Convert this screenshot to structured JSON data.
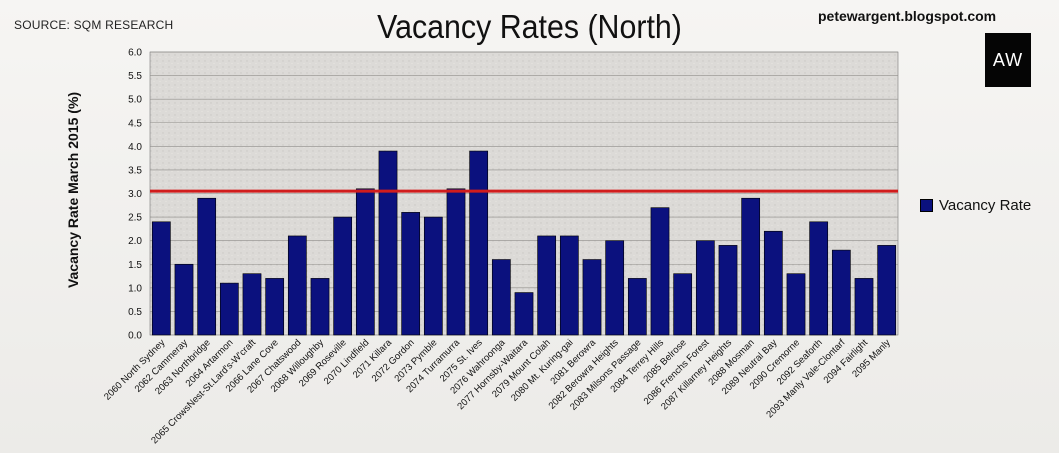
{
  "header": {
    "source": "SOURCE: SQM RESEARCH",
    "title": "Vacancy Rates (North)",
    "blog": "petewargent.blogspot.com",
    "logo": "AW"
  },
  "colors": {
    "bar": "#0b117e",
    "reference_line": "#d11c1c",
    "plot_bg": "#d9d7d4"
  },
  "chart_data": {
    "type": "bar",
    "title": "Vacancy Rates (North)",
    "ylabel": "Vacancy Rate March 2015 (%)",
    "xlabel": "",
    "ylim": [
      0,
      6
    ],
    "ytick_step": 0.5,
    "grid": true,
    "legend_position": "right",
    "reference_line": 3.05,
    "categories": [
      "2060 North Sydney",
      "2062 Cammeray",
      "2063 Northbridge",
      "2064 Artarmon",
      "2065 CrowsNest-St.Lard's-W'craft",
      "2066 Lane Cove",
      "2067 Chatswood",
      "2068 Willoughby",
      "2069 Roseville",
      "2070 Lindfield",
      "2071 Killara",
      "2072 Gordon",
      "2073 Pymble",
      "2074 Turramurra",
      "2075 St. Ives",
      "2076 Wahroonga",
      "2077 Hornsby-Waitara",
      "2079 Mount Colah",
      "2080 Mt. Kuring-gai",
      "2081 Berowra",
      "2082 Berowra Heights",
      "2083 Milsons Passage",
      "2084 Terrey Hills",
      "2085 Belrose",
      "2086 Frenchs Forest",
      "2087 Killarney Heights",
      "2088 Mosman",
      "2089 Neutral Bay",
      "2090 Cremorne",
      "2092 Seaforth",
      "2093 Manly Vale-Clontarf",
      "2094 Fairlight",
      "2095 Manly"
    ],
    "series": [
      {
        "name": "Vacancy Rate",
        "values": [
          2.4,
          1.5,
          2.9,
          1.1,
          1.3,
          1.2,
          2.1,
          1.2,
          2.5,
          3.1,
          3.9,
          2.6,
          2.5,
          3.1,
          3.9,
          1.6,
          0.9,
          2.1,
          2.1,
          1.6,
          2.0,
          1.2,
          2.7,
          1.3,
          2.0,
          1.9,
          2.9,
          2.2,
          1.3,
          2.4,
          1.8,
          1.2,
          1.9
        ]
      }
    ]
  }
}
